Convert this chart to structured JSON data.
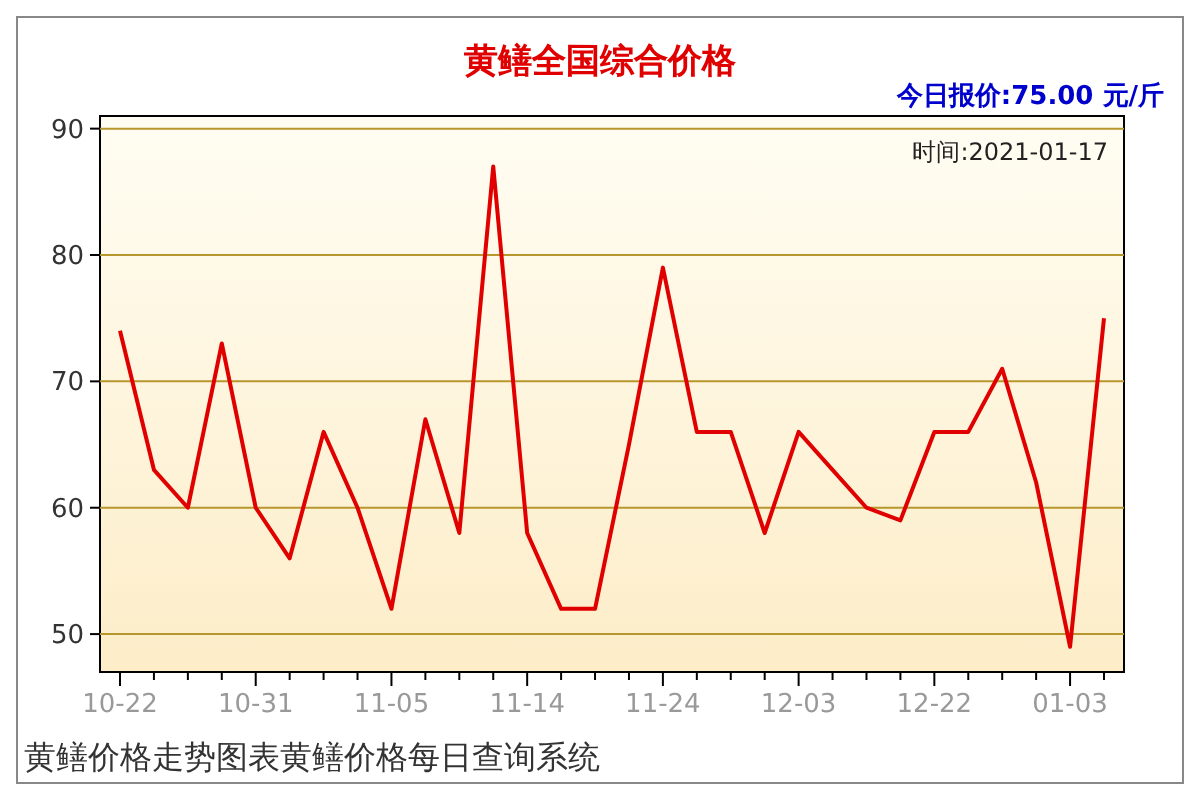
{
  "chart_data": {
    "type": "line",
    "title": "黄鳝全国综合价格",
    "subtitle": "今日报价:75.00 元/斤",
    "categories": [
      "10-22",
      null,
      null,
      null,
      "10-31",
      null,
      null,
      null,
      "11-05",
      null,
      null,
      null,
      "11-14",
      null,
      null,
      null,
      "11-24",
      null,
      null,
      null,
      "12-03",
      null,
      null,
      null,
      "12-22",
      null,
      null,
      null,
      "01-03",
      null
    ],
    "series": [
      {
        "color": "#e00000",
        "values": [
          74,
          63,
          60,
          73,
          60,
          56,
          66,
          60,
          52,
          67,
          58,
          87,
          58,
          52,
          52,
          65,
          79,
          66,
          66,
          58,
          66,
          63,
          60,
          59,
          66,
          66,
          71,
          62,
          49,
          75
        ]
      }
    ],
    "ylim": [
      47,
      91
    ],
    "yticks": [
      50,
      60,
      70,
      80,
      90
    ],
    "grid": "y",
    "marker": "none",
    "line_style": "solid",
    "annotations": [
      "时间:2021-01-17",
      "黄鳝价格走势图表黄鳝价格每日查询系统"
    ]
  }
}
